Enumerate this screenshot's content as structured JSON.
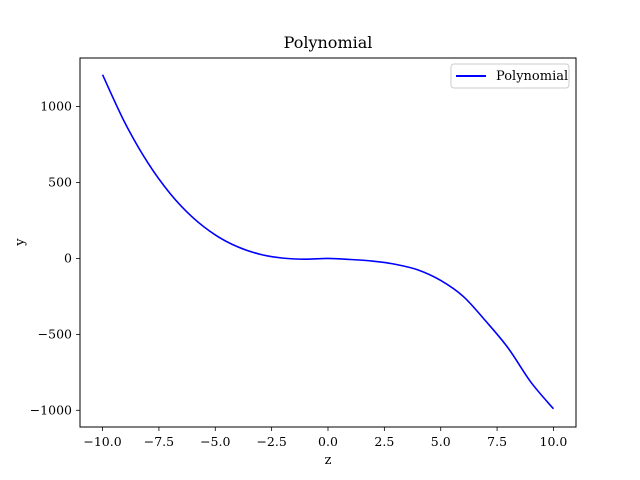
{
  "chart_data": {
    "type": "line",
    "title": "Polynomial",
    "xlabel": "z",
    "ylabel": "y",
    "xlim": [
      -11.0,
      11.0
    ],
    "ylim": [
      -1110,
      1320
    ],
    "x_ticks": [
      -10.0,
      -7.5,
      -5.0,
      -2.5,
      0.0,
      2.5,
      5.0,
      7.5,
      10.0
    ],
    "x_tick_labels": [
      "−10.0",
      "−7.5",
      "−5.0",
      "−2.5",
      "0.0",
      "2.5",
      "5.0",
      "7.5",
      "10.0"
    ],
    "y_ticks": [
      -1000,
      -500,
      0,
      500,
      1000
    ],
    "y_tick_labels": [
      "−1000",
      "−500",
      "0",
      "500",
      "1000"
    ],
    "grid": false,
    "legend": {
      "placement": "upper right"
    },
    "series": [
      {
        "name": "Polynomial",
        "color": "#0000ff",
        "x": [
          -10,
          -9,
          -8,
          -7,
          -6,
          -5,
          -4,
          -3,
          -2,
          -1,
          0,
          1,
          2,
          3,
          4,
          5,
          6,
          7,
          8,
          9,
          10
        ],
        "y": [
          1210,
          891,
          632,
          427,
          270,
          155,
          76,
          27,
          2,
          -5,
          0,
          -7,
          -18,
          -39,
          -76,
          -145,
          -250,
          -413,
          -592,
          -815,
          -990
        ]
      }
    ]
  }
}
